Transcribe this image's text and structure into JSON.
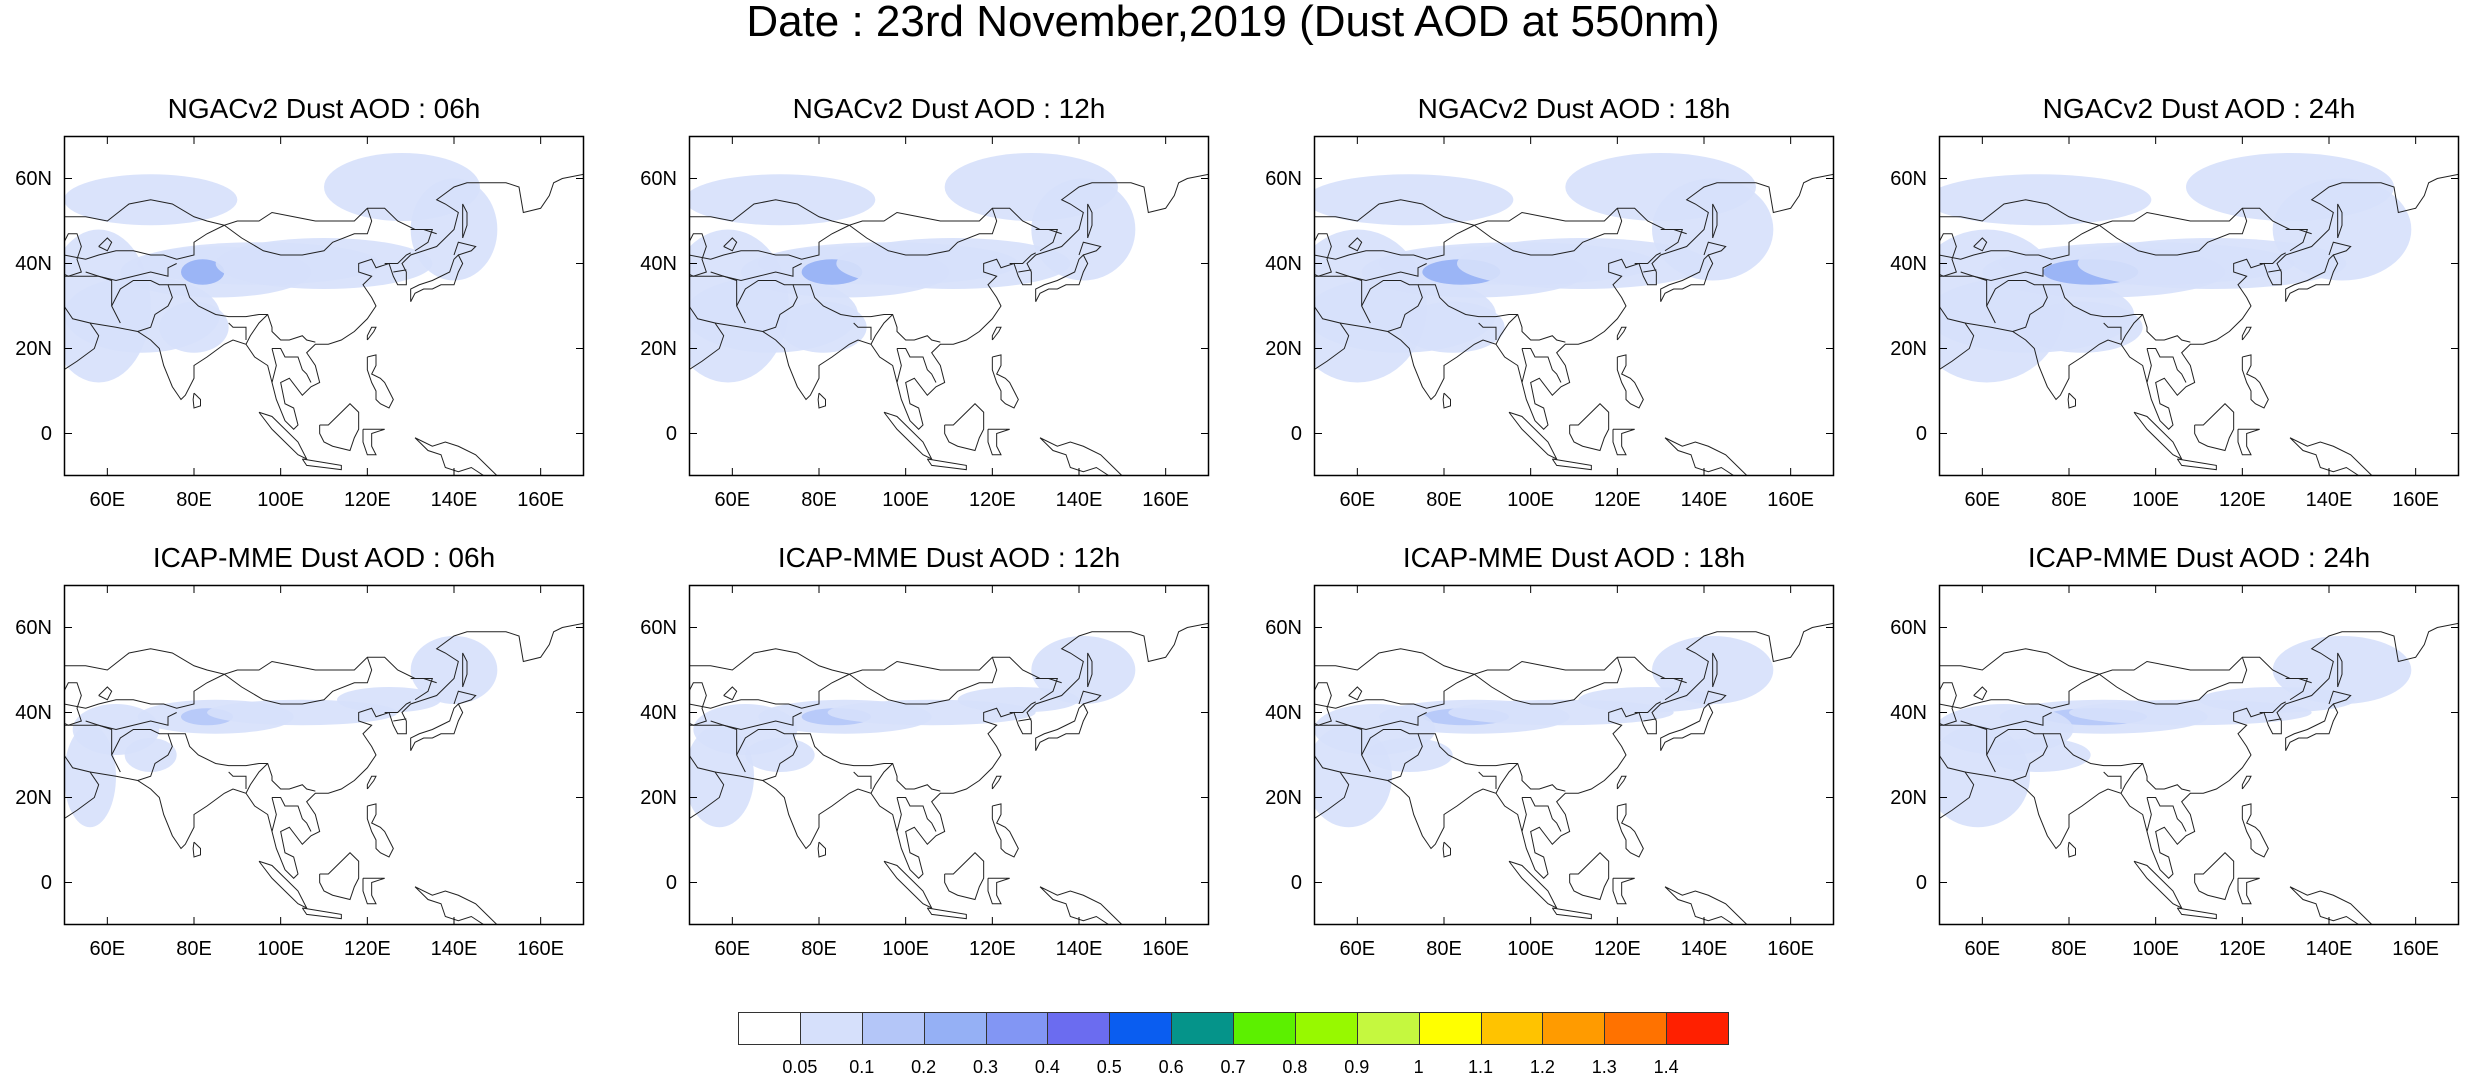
{
  "title": "Date : 23rd November,2019 (Dust AOD at 550nm)",
  "panels": [
    {
      "title": "NGACv2 Dust AOD : 06h",
      "model": "NGACv2",
      "hour": "06h"
    },
    {
      "title": "NGACv2 Dust AOD : 12h",
      "model": "NGACv2",
      "hour": "12h"
    },
    {
      "title": "NGACv2 Dust AOD : 18h",
      "model": "NGACv2",
      "hour": "18h"
    },
    {
      "title": "NGACv2 Dust AOD : 24h",
      "model": "NGACv2",
      "hour": "24h"
    },
    {
      "title": "ICAP-MME Dust AOD : 06h",
      "model": "ICAP-MME",
      "hour": "06h"
    },
    {
      "title": "ICAP-MME Dust AOD : 12h",
      "model": "ICAP-MME",
      "hour": "12h"
    },
    {
      "title": "ICAP-MME Dust AOD : 18h",
      "model": "ICAP-MME",
      "hour": "18h"
    },
    {
      "title": "ICAP-MME Dust AOD : 24h",
      "model": "ICAP-MME",
      "hour": "24h"
    }
  ],
  "axes": {
    "y_ticks": [
      "60N",
      "40N",
      "20N",
      "0"
    ],
    "x_ticks": [
      "60E",
      "80E",
      "100E",
      "120E",
      "140E",
      "160E"
    ]
  },
  "colorbar": {
    "labels": [
      "0.05",
      "0.1",
      "0.2",
      "0.3",
      "0.4",
      "0.5",
      "0.6",
      "0.7",
      "0.8",
      "0.9",
      "1",
      "1.1",
      "1.2",
      "1.3",
      "1.4"
    ],
    "colors": [
      "#ffffff",
      "#d6e0fb",
      "#b4c6f8",
      "#95b0f5",
      "#8296f4",
      "#6b6cf0",
      "#0a5df0",
      "#05948a",
      "#5cf000",
      "#97f900",
      "#c5f83f",
      "#ffff00",
      "#ffc300",
      "#ff9b00",
      "#ff7200",
      "#ff2000"
    ]
  }
}
